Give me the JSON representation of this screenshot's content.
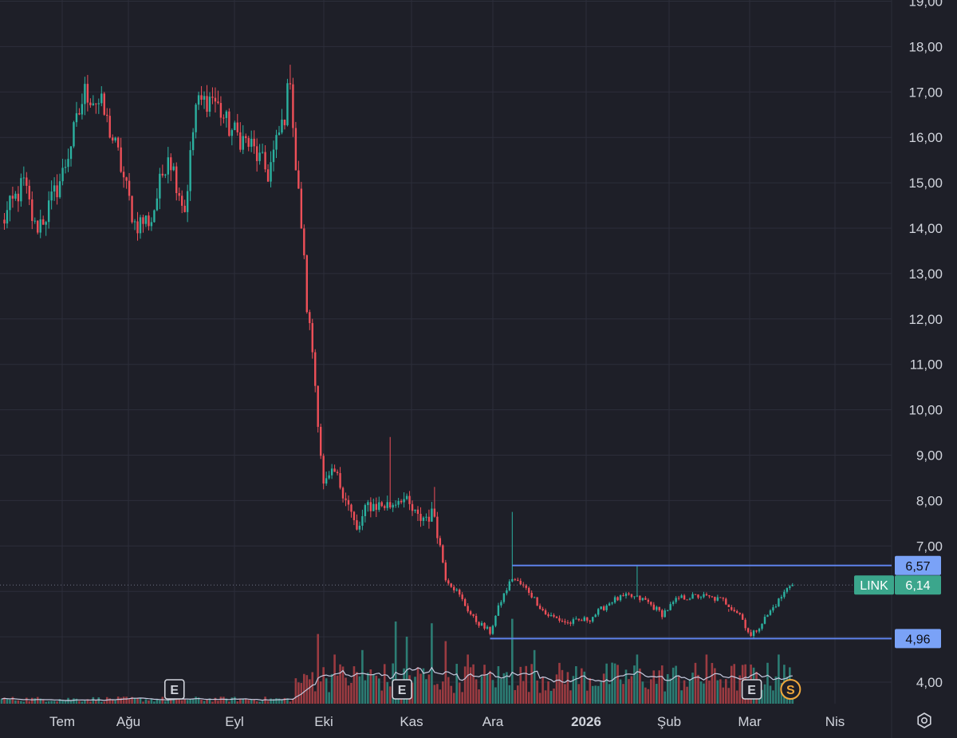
{
  "colors": {
    "background": "#1e1f28",
    "grid": "#2c2e3a",
    "up": "#2bb1a0",
    "down": "#ee4f58",
    "volume_up": "#2c7d74",
    "volume_down": "#9b3b41",
    "volume_ma": "#c7cbe0",
    "level_line": "#5e82ea",
    "level_badge": "#7aa2f7",
    "last_price": "#3ba68c",
    "earnings_badge": "#d1d4dc",
    "split_badge": "#f0a83c"
  },
  "chart_data": {
    "type": "candlestick",
    "price_axis": {
      "ticks": [
        "19,00",
        "18,00",
        "17,00",
        "16,00",
        "15,00",
        "14,00",
        "13,00",
        "12,00",
        "11,00",
        "10,00",
        "9,00",
        "8,00",
        "7,00",
        "4,00"
      ],
      "tick_values": [
        19,
        18,
        17,
        16,
        15,
        14,
        13,
        12,
        11,
        10,
        9,
        8,
        7,
        4
      ],
      "range": [
        3.5,
        19.1
      ]
    },
    "time_axis": {
      "labels": [
        "Tem",
        "Ağu",
        "Eyl",
        "Eki",
        "Kas",
        "Ara",
        "2026",
        "Şub",
        "Mar",
        "Nis"
      ],
      "bold": [
        false,
        false,
        false,
        false,
        false,
        false,
        true,
        false,
        false,
        false
      ]
    },
    "anchors": [
      {
        "i": 0,
        "v": 14.1
      },
      {
        "i": 8,
        "v": 15.0
      },
      {
        "i": 12,
        "v": 14.0
      },
      {
        "i": 16,
        "v": 14.3
      },
      {
        "i": 22,
        "v": 15.2
      },
      {
        "i": 26,
        "v": 16.1
      },
      {
        "i": 30,
        "v": 17.0
      },
      {
        "i": 36,
        "v": 16.7
      },
      {
        "i": 42,
        "v": 15.6
      },
      {
        "i": 48,
        "v": 14.1
      },
      {
        "i": 54,
        "v": 14.2
      },
      {
        "i": 60,
        "v": 15.7
      },
      {
        "i": 66,
        "v": 14.4
      },
      {
        "i": 70,
        "v": 16.7
      },
      {
        "i": 76,
        "v": 16.9
      },
      {
        "i": 82,
        "v": 16.2
      },
      {
        "i": 90,
        "v": 15.8
      },
      {
        "i": 96,
        "v": 15.2
      },
      {
        "i": 102,
        "v": 16.5
      },
      {
        "i": 104,
        "v": 17.4
      },
      {
        "i": 106,
        "v": 15.3
      },
      {
        "i": 108,
        "v": 14.1
      },
      {
        "i": 110,
        "v": 12.3
      },
      {
        "i": 112,
        "v": 11.3
      },
      {
        "i": 114,
        "v": 9.8
      },
      {
        "i": 116,
        "v": 8.3
      },
      {
        "i": 120,
        "v": 8.6
      },
      {
        "i": 124,
        "v": 8.1
      },
      {
        "i": 128,
        "v": 7.3
      },
      {
        "i": 132,
        "v": 7.9
      },
      {
        "i": 140,
        "v": 7.9
      },
      {
        "i": 144,
        "v": 8.1
      },
      {
        "i": 150,
        "v": 7.6
      },
      {
        "i": 156,
        "v": 7.7
      },
      {
        "i": 160,
        "v": 6.3
      },
      {
        "i": 164,
        "v": 6.0
      },
      {
        "i": 170,
        "v": 5.4
      },
      {
        "i": 176,
        "v": 5.1
      },
      {
        "i": 180,
        "v": 5.8
      },
      {
        "i": 184,
        "v": 6.3
      },
      {
        "i": 190,
        "v": 6.0
      },
      {
        "i": 196,
        "v": 5.5
      },
      {
        "i": 204,
        "v": 5.3
      },
      {
        "i": 212,
        "v": 5.4
      },
      {
        "i": 220,
        "v": 5.8
      },
      {
        "i": 226,
        "v": 5.9
      },
      {
        "i": 232,
        "v": 5.8
      },
      {
        "i": 238,
        "v": 5.5
      },
      {
        "i": 244,
        "v": 5.85
      },
      {
        "i": 252,
        "v": 5.9
      },
      {
        "i": 260,
        "v": 5.8
      },
      {
        "i": 266,
        "v": 5.5
      },
      {
        "i": 270,
        "v": 5.0
      },
      {
        "i": 275,
        "v": 5.4
      },
      {
        "i": 280,
        "v": 5.8
      },
      {
        "i": 284,
        "v": 6.14
      }
    ],
    "spikes": [
      {
        "i": 104,
        "high": 17.6
      },
      {
        "i": 140,
        "high": 9.4
      },
      {
        "i": 156,
        "high": 8.3
      },
      {
        "i": 184,
        "high": 7.75
      },
      {
        "i": 229,
        "high": 6.57
      },
      {
        "i": 262,
        "high": 5.55
      }
    ],
    "volume_spikes": [
      {
        "i": 110,
        "h": 0.32
      },
      {
        "i": 114,
        "h": 0.78
      },
      {
        "i": 120,
        "h": 0.55
      },
      {
        "i": 130,
        "h": 0.6
      },
      {
        "i": 142,
        "h": 0.92
      },
      {
        "i": 146,
        "h": 0.75
      },
      {
        "i": 155,
        "h": 0.9
      },
      {
        "i": 160,
        "h": 0.7
      },
      {
        "i": 168,
        "h": 0.55
      },
      {
        "i": 184,
        "h": 0.95
      },
      {
        "i": 192,
        "h": 0.6
      },
      {
        "i": 229,
        "h": 0.55
      },
      {
        "i": 254,
        "h": 0.55
      },
      {
        "i": 280,
        "h": 0.55
      }
    ],
    "levels": [
      {
        "value": 6.57,
        "label": "6,57",
        "start_index": 184
      },
      {
        "value": 4.96,
        "label": "4,96",
        "start_index": 176
      }
    ],
    "last_price": {
      "value": 6.14,
      "label": "6,14",
      "ticker": "LINK"
    },
    "event_markers": [
      {
        "type": "E",
        "index": 62
      },
      {
        "type": "E",
        "index": 144
      },
      {
        "type": "E",
        "index": 270
      },
      {
        "type": "S",
        "index": 284
      }
    ]
  }
}
